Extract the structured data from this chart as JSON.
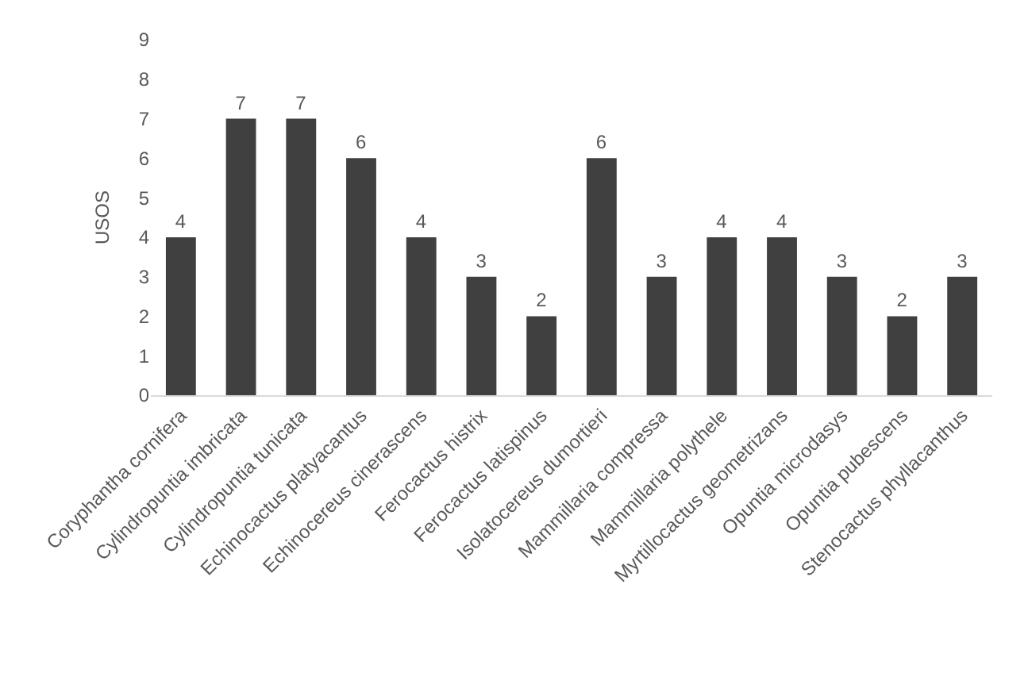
{
  "chart_data": {
    "type": "bar",
    "ylabel": "USOS",
    "categories": [
      "Coryphantha cornifera",
      "Cylindropuntia imbricata",
      "Cylindropuntia tunicata",
      "Echinocactus platyacantus",
      "Echinocereus cinerascens",
      "Ferocactus histrix",
      "Ferocactus latispinus",
      "Isolatocereus dumortieri",
      "Mammillaria compressa",
      "Mammillaria polythele",
      "Myrtillocactus geometrizans",
      "Opuntia microdasys",
      "Opuntia pubescens",
      "Stenocactus phyllacanthus"
    ],
    "values": [
      4,
      7,
      7,
      6,
      4,
      3,
      2,
      6,
      3,
      4,
      4,
      3,
      2,
      3
    ],
    "color": "#404040",
    "ylim": [
      0,
      9
    ],
    "yticks": [
      0,
      1,
      2,
      3,
      4,
      5,
      6,
      7,
      8,
      9
    ],
    "data_labels": true
  }
}
